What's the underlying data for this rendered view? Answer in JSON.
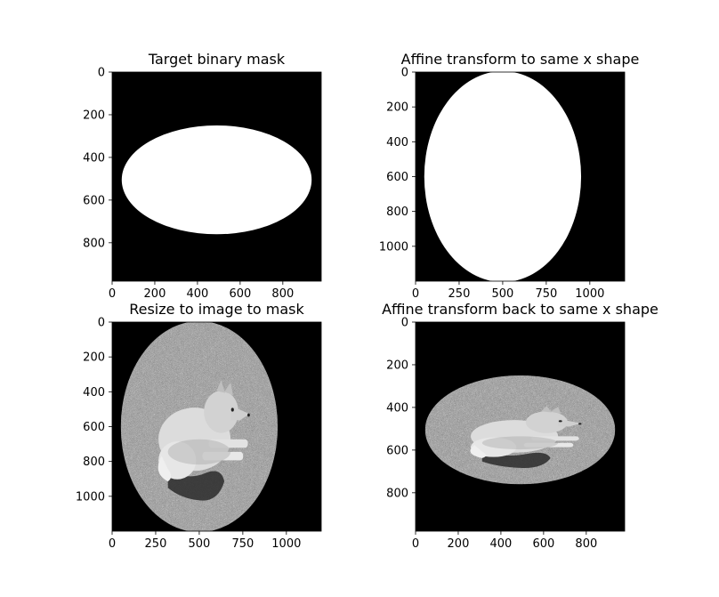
{
  "chart_data": [
    {
      "type": "image",
      "title": "Target binary mask",
      "content": "white ellipse on black",
      "xlim": [
        0,
        980
      ],
      "ylim": [
        980,
        0
      ],
      "xticks": [
        "0",
        "200",
        "400",
        "600",
        "800"
      ],
      "yticks": [
        "0",
        "200",
        "400",
        "600",
        "800"
      ],
      "xtick_values": [
        0,
        200,
        400,
        600,
        800
      ],
      "ytick_values": [
        0,
        200,
        400,
        600,
        800
      ],
      "ellipse": {
        "cx": 490,
        "cy": 505,
        "rx": 445,
        "ry": 255
      }
    },
    {
      "type": "image",
      "title": "Affine transform to same x shape",
      "content": "white ellipse on black",
      "xlim": [
        0,
        1200
      ],
      "ylim": [
        1200,
        0
      ],
      "xticks": [
        "0",
        "250",
        "500",
        "750",
        "1000"
      ],
      "yticks": [
        "0",
        "200",
        "400",
        "600",
        "800",
        "1000"
      ],
      "xtick_values": [
        0,
        250,
        500,
        750,
        1000
      ],
      "ytick_values": [
        0,
        200,
        400,
        600,
        800,
        1000
      ],
      "ellipse": {
        "cx": 500,
        "cy": 600,
        "rx": 450,
        "ry": 605
      }
    },
    {
      "type": "image",
      "title": "Resize to image to mask",
      "content": "grayscale photo of a dog lying on gravel, cropped to ellipse",
      "xlim": [
        0,
        1200
      ],
      "ylim": [
        1200,
        0
      ],
      "xticks": [
        "0",
        "250",
        "500",
        "750",
        "1000"
      ],
      "yticks": [
        "0",
        "200",
        "400",
        "600",
        "800",
        "1000"
      ],
      "xtick_values": [
        0,
        250,
        500,
        750,
        1000
      ],
      "ytick_values": [
        0,
        200,
        400,
        600,
        800,
        1000
      ],
      "ellipse": {
        "cx": 500,
        "cy": 600,
        "rx": 450,
        "ry": 605
      }
    },
    {
      "type": "image",
      "title": "Affine transform back to same x shape",
      "content": "grayscale photo of a dog lying on gravel, cropped to ellipse",
      "xlim": [
        0,
        980
      ],
      "ylim": [
        980,
        0
      ],
      "xticks": [
        "0",
        "200",
        "400",
        "600",
        "800"
      ],
      "yticks": [
        "0",
        "200",
        "400",
        "600",
        "800"
      ],
      "xtick_values": [
        0,
        200,
        400,
        600,
        800
      ],
      "ytick_values": [
        0,
        200,
        400,
        600,
        800
      ],
      "ellipse": {
        "cx": 490,
        "cy": 505,
        "rx": 445,
        "ry": 255
      }
    }
  ]
}
